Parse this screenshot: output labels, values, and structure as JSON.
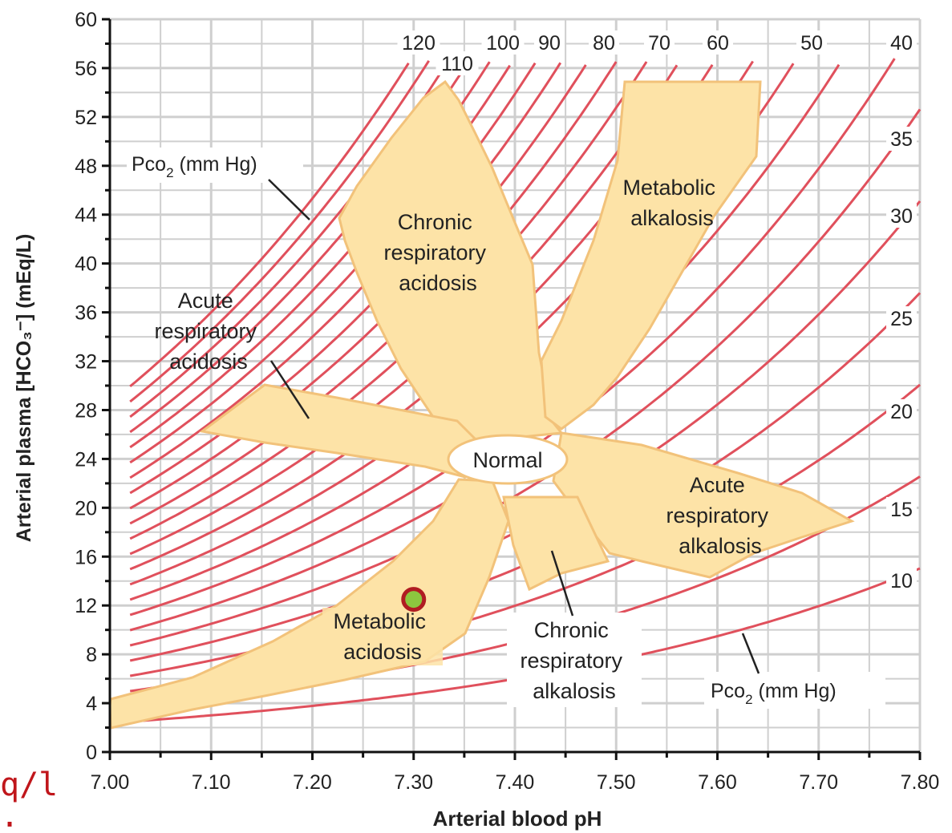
{
  "chart_data": {
    "type": "line",
    "xlabel": "Arterial blood pH",
    "ylabel": "Arterial plasma [HCO₃⁻] (mEq/L)",
    "xlim": [
      7.0,
      7.8
    ],
    "ylim": [
      0,
      60
    ],
    "x_ticks": [
      "7.00",
      "7.10",
      "7.20",
      "7.30",
      "7.40",
      "7.50",
      "7.60",
      "7.70",
      "7.80"
    ],
    "y_ticks": [
      "0",
      "4",
      "8",
      "12",
      "16",
      "20",
      "24",
      "28",
      "32",
      "36",
      "40",
      "44",
      "48",
      "52",
      "56",
      "60"
    ],
    "grid": true,
    "series_label": "Pco₂ (mm Hg)",
    "isopleth_values": [
      10,
      15,
      20,
      25,
      30,
      35,
      40,
      45,
      50,
      55,
      60,
      65,
      70,
      75,
      80,
      85,
      90,
      95,
      100,
      105,
      110,
      115,
      120
    ],
    "isopleth_labels": [
      "120",
      "110",
      "100",
      "90",
      "80",
      "70",
      "60",
      "50",
      "40",
      "35",
      "30",
      "25",
      "20",
      "15",
      "10"
    ],
    "regions": [
      {
        "name": "Normal",
        "label": "Normal"
      },
      {
        "name": "chronic-respiratory-acidosis",
        "label": "Chronic respiratory acidosis"
      },
      {
        "name": "metabolic-alkalosis",
        "label": "Metabolic alkalosis"
      },
      {
        "name": "acute-respiratory-acidosis",
        "label": "Acute respiratory acidosis"
      },
      {
        "name": "acute-respiratory-alkalosis",
        "label": "Acute respiratory alkalosis"
      },
      {
        "name": "chronic-respiratory-alkalosis",
        "label": "Chronic respiratory alkalosis"
      },
      {
        "name": "metabolic-acidosis",
        "label": "Metabolic acidosis"
      }
    ],
    "marker": {
      "x": 7.3,
      "y": 12.5,
      "color": "#8cc63f",
      "ring": "#b01c22"
    },
    "colors": {
      "isopleth": "#e0505c",
      "region_fill": "#fde3a7",
      "region_stroke": "#f2c27a",
      "grid": "#cfcfcf"
    }
  },
  "labels": {
    "acute_resp_acidosis": [
      "Acute",
      "respiratory",
      "acidosis"
    ],
    "chronic_resp_acidosis": [
      "Chronic",
      "respiratory",
      "acidosis"
    ],
    "metabolic_alkalosis": [
      "Metabolic",
      "alkalosis"
    ],
    "normal": "Normal",
    "acute_resp_alkalosis": [
      "Acute",
      "respiratory",
      "alkalosis"
    ],
    "metabolic_acidosis": [
      "Metabolic",
      "acidosis"
    ],
    "chronic_resp_alkalosis": [
      "Chronic",
      "respiratory",
      "alkalosis"
    ],
    "pco2_main": "Pco",
    "pco2_sub": "2",
    "pco2_unit": " (mm Hg)"
  },
  "overlay": {
    "line1": "q/l",
    "line2": ":"
  }
}
